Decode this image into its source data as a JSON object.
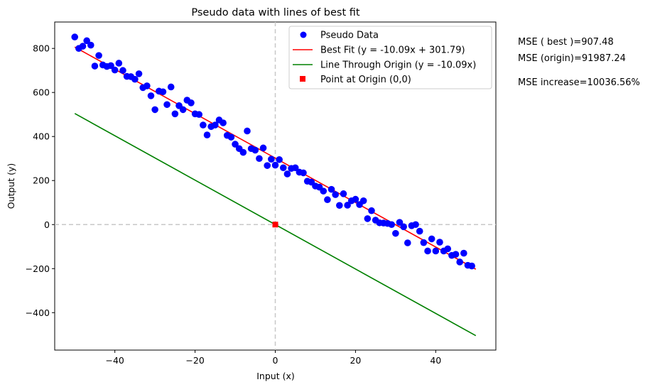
{
  "chart_data": {
    "type": "scatter",
    "title": "Pseudo data with lines of best fit",
    "xlabel": "Input (x)",
    "ylabel": "Output (y)",
    "xlim": [
      -55,
      55
    ],
    "ylim": [
      -570,
      920
    ],
    "xticks": [
      -40,
      -20,
      0,
      20,
      40
    ],
    "yticks": [
      -400,
      -200,
      0,
      200,
      400,
      600,
      800
    ],
    "xtick_labels": [
      "−40",
      "−20",
      "0",
      "20",
      "40"
    ],
    "ytick_labels": [
      "−400",
      "−200",
      "0",
      "200",
      "400",
      "600",
      "800"
    ],
    "grid": false,
    "legend_position": "top-right",
    "colors": {
      "scatter": "#0000ff",
      "best_fit": "#ff0000",
      "origin_line": "#008000",
      "origin_point": "#ff0000",
      "reference": "#c8c8c8"
    },
    "series": [
      {
        "name": "Pseudo Data",
        "kind": "scatter",
        "points": [
          [
            -50.0,
            852
          ],
          [
            -49.0,
            800
          ],
          [
            -48.0,
            810
          ],
          [
            -47.0,
            835
          ],
          [
            -46.0,
            815
          ],
          [
            -45.0,
            720
          ],
          [
            -44.0,
            768
          ],
          [
            -43.0,
            725
          ],
          [
            -42.0,
            718
          ],
          [
            -41.0,
            722
          ],
          [
            -40.0,
            702
          ],
          [
            -39.0,
            733
          ],
          [
            -38.0,
            700
          ],
          [
            -37.0,
            673
          ],
          [
            -36.0,
            672
          ],
          [
            -35.0,
            660
          ],
          [
            -34.0,
            685
          ],
          [
            -33.0,
            622
          ],
          [
            -32.0,
            630
          ],
          [
            -31.0,
            585
          ],
          [
            -30.0,
            522
          ],
          [
            -29.0,
            606
          ],
          [
            -28.0,
            603
          ],
          [
            -27.0,
            545
          ],
          [
            -26.0,
            625
          ],
          [
            -25.0,
            503
          ],
          [
            -24.0,
            540
          ],
          [
            -23.0,
            522
          ],
          [
            -22.0,
            565
          ],
          [
            -21.0,
            553
          ],
          [
            -20.0,
            503
          ],
          [
            -19.0,
            500
          ],
          [
            -18.0,
            452
          ],
          [
            -17.0,
            407
          ],
          [
            -16.0,
            445
          ],
          [
            -15.0,
            452
          ],
          [
            -14.0,
            475
          ],
          [
            -13.0,
            462
          ],
          [
            -12.0,
            405
          ],
          [
            -11.0,
            397
          ],
          [
            -10.0,
            365
          ],
          [
            -9.0,
            345
          ],
          [
            -8.0,
            328
          ],
          [
            -7.0,
            425
          ],
          [
            -6.0,
            345
          ],
          [
            -5.0,
            338
          ],
          [
            -4.0,
            300
          ],
          [
            -3.0,
            348
          ],
          [
            -2.0,
            268
          ],
          [
            -1.0,
            297
          ],
          [
            0.0,
            270
          ],
          [
            1.0,
            295
          ],
          [
            2.0,
            258
          ],
          [
            3.0,
            230
          ],
          [
            4.0,
            255
          ],
          [
            5.0,
            258
          ],
          [
            6.0,
            238
          ],
          [
            7.0,
            235
          ],
          [
            8.0,
            197
          ],
          [
            9.0,
            193
          ],
          [
            10.0,
            175
          ],
          [
            11.0,
            170
          ],
          [
            12.0,
            152
          ],
          [
            13.0,
            113
          ],
          [
            14.0,
            160
          ],
          [
            15.0,
            136
          ],
          [
            16.0,
            87
          ],
          [
            17.0,
            140
          ],
          [
            18.0,
            88
          ],
          [
            19.0,
            108
          ],
          [
            20.0,
            115
          ],
          [
            21.0,
            91
          ],
          [
            22.0,
            108
          ],
          [
            23.0,
            27
          ],
          [
            24.0,
            63
          ],
          [
            25.0,
            20
          ],
          [
            26.0,
            8
          ],
          [
            27.0,
            7
          ],
          [
            28.0,
            5
          ],
          [
            29.0,
            0
          ],
          [
            30.0,
            -40
          ],
          [
            31.0,
            10
          ],
          [
            32.0,
            -10
          ],
          [
            33.0,
            -83
          ],
          [
            34.0,
            -5
          ],
          [
            35.0,
            0
          ],
          [
            36.0,
            -30
          ],
          [
            37.0,
            -82
          ],
          [
            38.0,
            -120
          ],
          [
            39.0,
            -65
          ],
          [
            40.0,
            -120
          ],
          [
            41.0,
            -80
          ],
          [
            42.0,
            -120
          ],
          [
            43.0,
            -110
          ],
          [
            44.0,
            -140
          ],
          [
            45.0,
            -135
          ],
          [
            46.0,
            -170
          ],
          [
            47.0,
            -130
          ],
          [
            48.0,
            -185
          ],
          [
            49.0,
            -188
          ]
        ]
      },
      {
        "name": "Best Fit (y = -10.09x + 301.79)",
        "kind": "line",
        "slope": -10.09,
        "intercept": 301.79,
        "x_range": [
          -50,
          50
        ]
      },
      {
        "name": "Line Through Origin (y = -10.09x)",
        "kind": "line",
        "slope": -10.09,
        "intercept": 0,
        "x_range": [
          -50,
          50
        ]
      },
      {
        "name": "Point at Origin (0,0)",
        "kind": "marker",
        "x": 0,
        "y": 0
      }
    ],
    "annotations": [
      "MSE ( best )=907.48",
      "MSE (origin)=91987.24",
      "MSE increase=10036.56%"
    ]
  }
}
